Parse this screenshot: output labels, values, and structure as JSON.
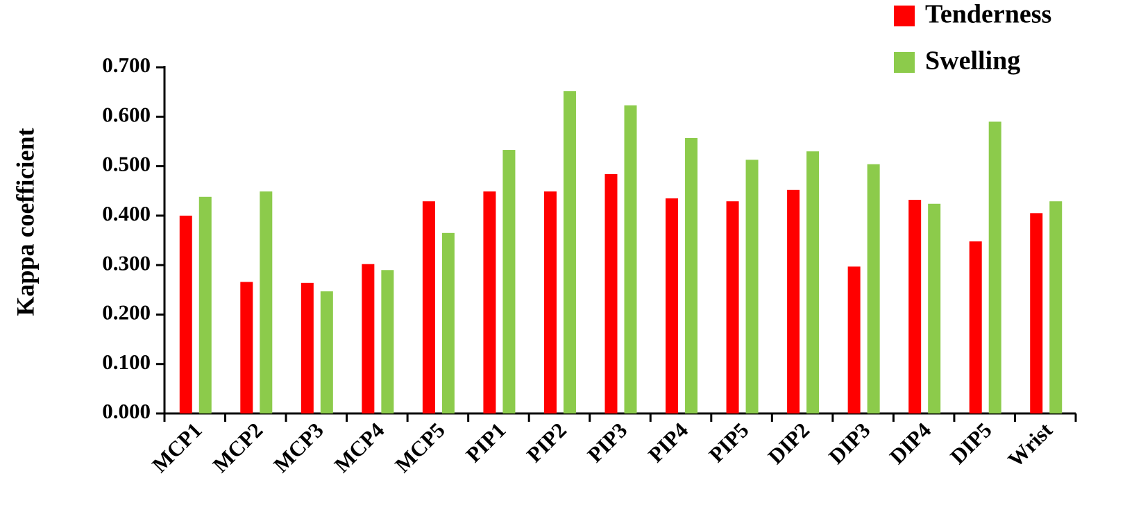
{
  "chart_data": {
    "type": "bar",
    "y_label": "Kappa coefficient",
    "categories": [
      "MCP1",
      "MCP2",
      "MCP3",
      "MCP4",
      "MCP5",
      "PIP1",
      "PIP2",
      "PIP3",
      "PIP4",
      "PIP5",
      "DIP2",
      "DIP3",
      "DIP4",
      "DIP5",
      "Wrist"
    ],
    "series": [
      {
        "name": "Tenderness",
        "color": "#ff0000",
        "values": [
          0.4,
          0.266,
          0.264,
          0.302,
          0.429,
          0.449,
          0.449,
          0.484,
          0.435,
          0.429,
          0.452,
          0.297,
          0.432,
          0.348,
          0.405
        ]
      },
      {
        "name": "Swelling",
        "color": "#8ccb4b",
        "values": [
          0.438,
          0.449,
          0.247,
          0.29,
          0.365,
          0.533,
          0.652,
          0.623,
          0.557,
          0.513,
          0.53,
          0.504,
          0.424,
          0.59,
          0.429
        ]
      }
    ],
    "ylim": [
      0,
      0.7
    ],
    "yticks": [
      {
        "value": 0,
        "label": "0.000"
      },
      {
        "value": 0.1,
        "label": "0.100"
      },
      {
        "value": 0.2,
        "label": "0.200"
      },
      {
        "value": 0.3,
        "label": "0.300"
      },
      {
        "value": 0.4,
        "label": "0.400"
      },
      {
        "value": 0.5,
        "label": "0.500"
      },
      {
        "value": 0.6,
        "label": "0.600"
      },
      {
        "value": 0.7,
        "label": "0.700"
      }
    ]
  }
}
